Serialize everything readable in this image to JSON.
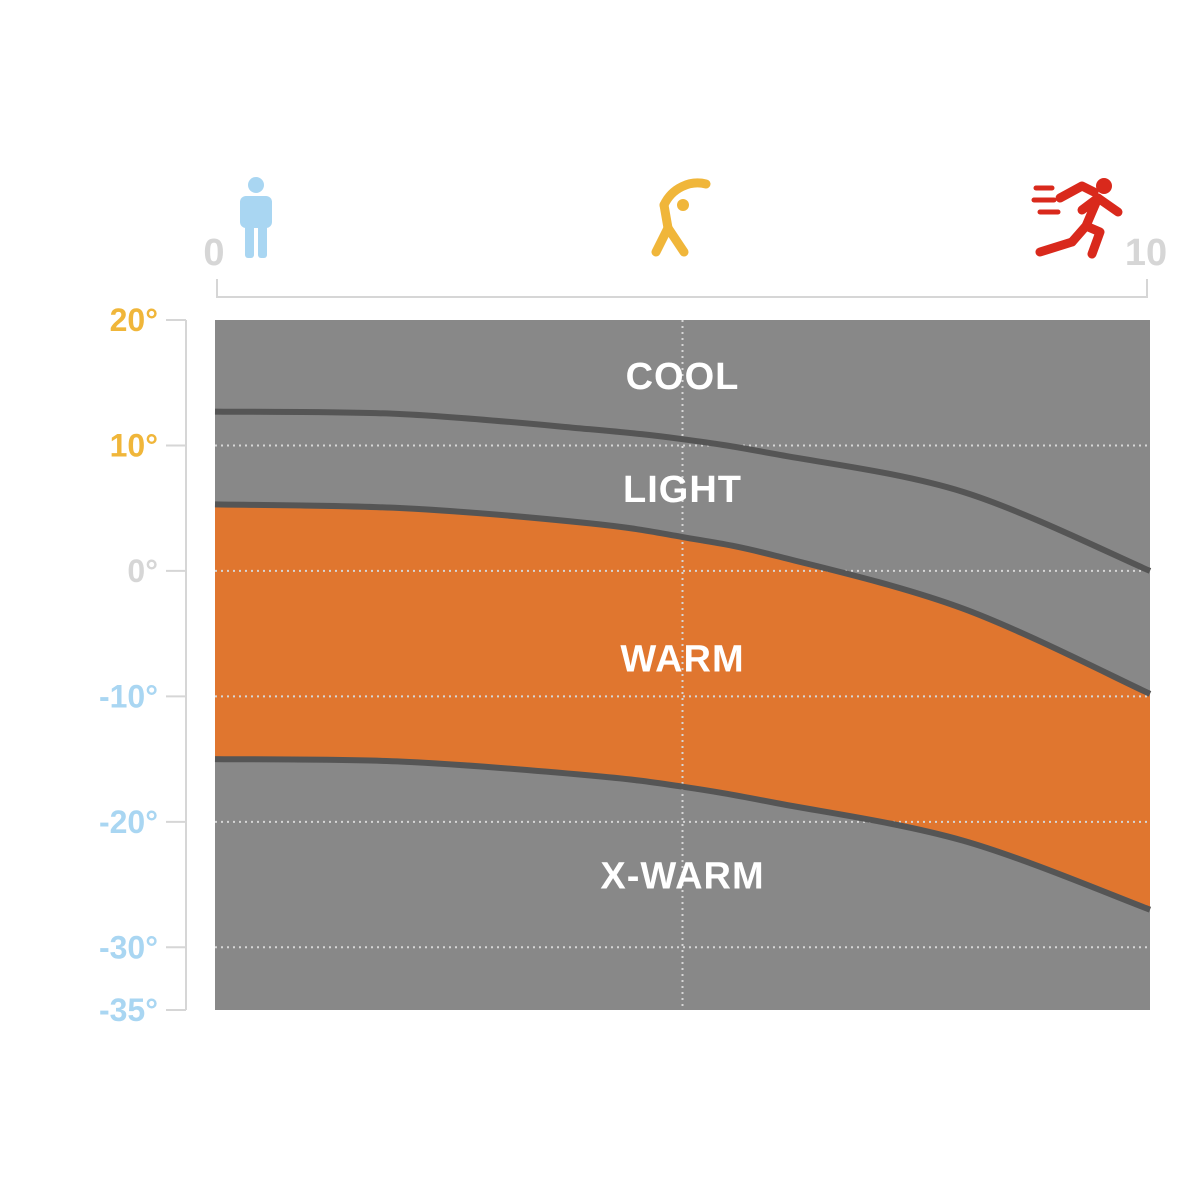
{
  "chart_data": {
    "type": "area",
    "x_axis": {
      "range": [
        0,
        10
      ],
      "end_labels": [
        "0",
        "10"
      ],
      "icons": [
        {
          "name": "standing-person-icon",
          "x": 0.4,
          "color": "#a9d6f2"
        },
        {
          "name": "stretching-person-icon",
          "x": 5.0,
          "color": "#f0b63a"
        },
        {
          "name": "running-person-icon",
          "x": 9.4,
          "color": "#d9291c"
        }
      ],
      "gridline_x": 5
    },
    "y_axis": {
      "range": [
        -35,
        20
      ],
      "ticks": [
        {
          "value": 20,
          "label": "20°",
          "color": "#f0b63a"
        },
        {
          "value": 10,
          "label": "10°",
          "color": "#f0b63a"
        },
        {
          "value": 0,
          "label": "0°",
          "color": "#d6d6d6"
        },
        {
          "value": -10,
          "label": "-10°",
          "color": "#a9d6f2"
        },
        {
          "value": -20,
          "label": "-20°",
          "color": "#a9d6f2"
        },
        {
          "value": -30,
          "label": "-30°",
          "color": "#a9d6f2"
        },
        {
          "value": -35,
          "label": "-35°",
          "color": "#a9d6f2"
        }
      ],
      "gridlines": [
        10,
        0,
        -10,
        -20,
        -30
      ]
    },
    "boundaries": [
      {
        "name": "cool-light",
        "x": [
          0,
          2,
          4,
          5,
          6,
          8,
          10
        ],
        "y": [
          12.7,
          12.5,
          11.3,
          10.5,
          9.3,
          6.3,
          0
        ]
      },
      {
        "name": "light-warm",
        "x": [
          0,
          2,
          4,
          5,
          6,
          8,
          10
        ],
        "y": [
          5.3,
          5.0,
          3.8,
          2.7,
          1.2,
          -3.0,
          -9.8
        ]
      },
      {
        "name": "warm-xwarm",
        "x": [
          0,
          2,
          4,
          5,
          6,
          8,
          10
        ],
        "y": [
          -15.0,
          -15.2,
          -16.3,
          -17.2,
          -18.5,
          -21.5,
          -27.0
        ]
      }
    ],
    "bands": [
      {
        "label": "COOL",
        "label_y": 14.5,
        "color": "#888888"
      },
      {
        "label": "LIGHT",
        "label_y": 5.5,
        "color": "#888888"
      },
      {
        "label": "WARM",
        "label_y": -8.0,
        "color": "#e0762f"
      },
      {
        "label": "X-WARM",
        "label_y": -25.3,
        "color": "#888888"
      }
    ],
    "grid": true,
    "colors": {
      "plot_background": "#888888",
      "boundary_line": "#555555",
      "axis_line": "#d6d6d6",
      "gridline": "#d6d6d6"
    }
  }
}
